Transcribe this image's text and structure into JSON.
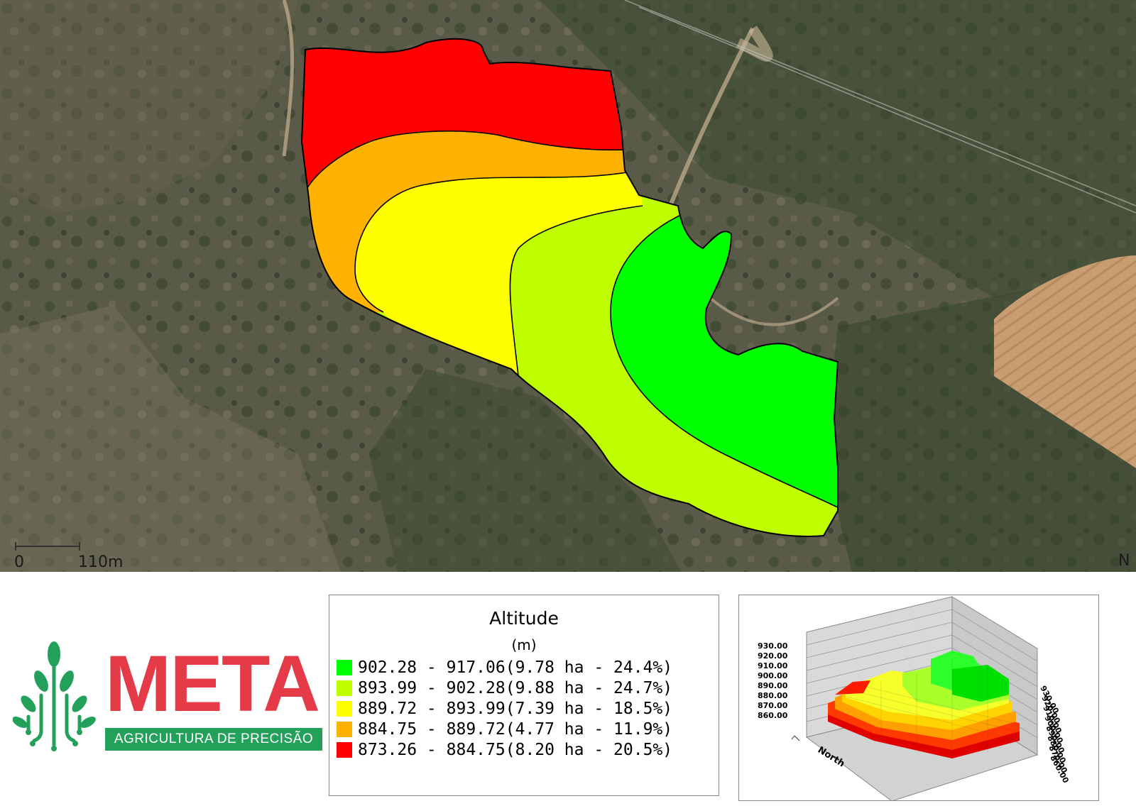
{
  "map": {
    "scale_bar": {
      "start_label": "0",
      "end_label": "110m"
    },
    "north_label": "N"
  },
  "logo": {
    "name": "META",
    "tagline": "AGRICULTURA DE PRECISÃO",
    "brand_red": "#e53a47",
    "brand_green": "#23a05a"
  },
  "legend": {
    "title": "Altitude",
    "unit": "(m)",
    "classes": [
      {
        "range": "902.28 - 917.06",
        "area": "(9.78 ha - 24.4%)",
        "color": "#00ff00"
      },
      {
        "range": "893.99 - 902.28",
        "area": "(9.88 ha - 24.7%)",
        "color": "#bfff00"
      },
      {
        "range": "889.72 - 893.99",
        "area": "(7.39 ha - 18.5%)",
        "color": "#ffff00"
      },
      {
        "range": "884.75 - 889.72",
        "area": "(4.77 ha - 11.9%)",
        "color": "#ffb300"
      },
      {
        "range": "873.26 - 884.75",
        "area": "(8.20 ha - 20.5%)",
        "color": "#ff0000"
      }
    ]
  },
  "chart3d": {
    "left_ticks": [
      "930.00",
      "920.00",
      "910.00",
      "900.00",
      "890.00",
      "880.00",
      "870.00",
      "860.00"
    ],
    "right_ticks": [
      "930.00",
      "920.00",
      "910.00",
      "900.00",
      "890.00",
      "880.00",
      "870.00",
      "860.00"
    ],
    "axis_label": "North"
  }
}
